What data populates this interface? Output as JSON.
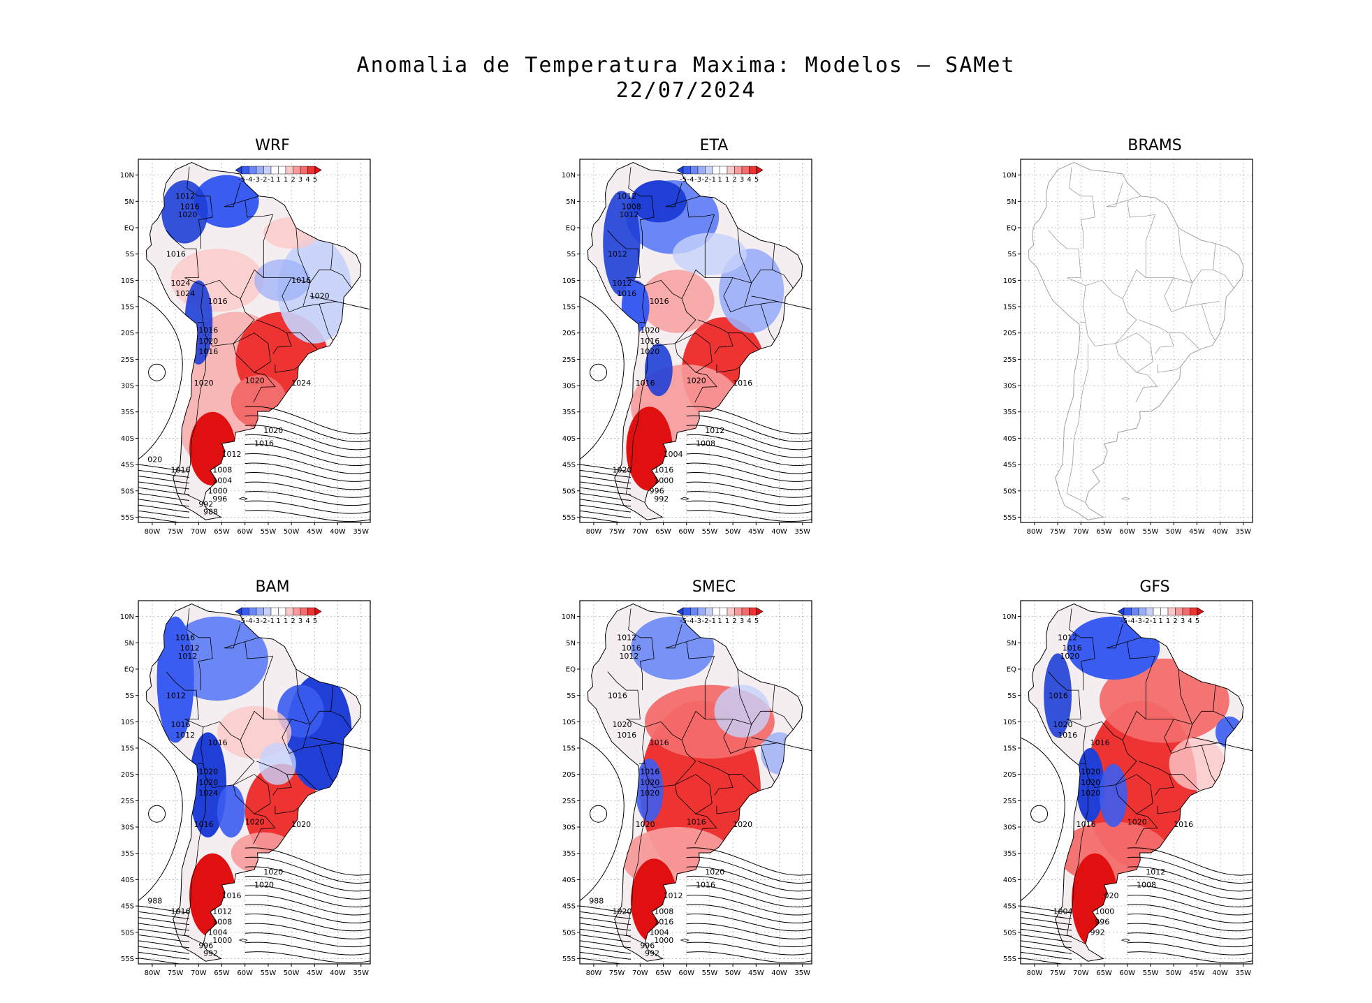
{
  "title": {
    "line1": "Anomalia de Temperatura Maxima: Modelos – SAMet",
    "line2": "22/07/2024"
  },
  "colorbar": {
    "ticks": [
      "-5",
      "-4",
      "-3",
      "-2",
      "-1",
      "1",
      "1",
      "2",
      "3",
      "4",
      "5"
    ],
    "colors": [
      "#1f3fd6",
      "#3a5cf0",
      "#6a87f5",
      "#9aaef8",
      "#c7d2fb",
      "#ffffff",
      "#ffffff",
      "#fbc8c8",
      "#f79a9a",
      "#f36c6c",
      "#ee3333",
      "#e01010"
    ]
  },
  "axes": {
    "lat_labels": [
      "10N",
      "5N",
      "EQ",
      "5S",
      "10S",
      "15S",
      "20S",
      "25S",
      "30S",
      "35S",
      "40S",
      "45S",
      "50S",
      "55S"
    ],
    "lon_labels": [
      "80W",
      "75W",
      "70W",
      "65W",
      "60W",
      "55W",
      "50W",
      "45W",
      "40W",
      "35W"
    ]
  },
  "panels": [
    {
      "id": "wrf",
      "title": "WRF",
      "has_data": true,
      "pattern": "wrf",
      "labels": [
        "1012",
        "1016",
        "1020",
        "1016",
        "1024",
        "1024",
        "1016",
        "1016",
        "1020",
        "1016",
        "1020",
        "1020",
        "1024",
        "1020",
        "1016",
        "1012",
        "1016",
        "1008",
        "1004",
        "1000",
        "996",
        "992",
        "988",
        "020",
        "1016",
        "1020"
      ]
    },
    {
      "id": "eta",
      "title": "ETA",
      "has_data": true,
      "pattern": "eta",
      "labels": [
        "1012",
        "1008",
        "1012",
        "1012",
        "1012",
        "1016",
        "1016",
        "1020",
        "1016",
        "1020",
        "1016",
        "1020",
        "1016",
        "1012",
        "1008",
        "1004",
        "1020",
        "1016",
        "1000",
        "996",
        "992"
      ]
    },
    {
      "id": "brams",
      "title": "BRAMS",
      "has_data": false,
      "pattern": "none",
      "labels": []
    },
    {
      "id": "bam",
      "title": "BAM",
      "has_data": true,
      "pattern": "bam",
      "labels": [
        "1016",
        "1012",
        "1012",
        "1012",
        "1016",
        "1012",
        "1016",
        "1020",
        "1020",
        "1024",
        "1016",
        "1020",
        "1020",
        "1020",
        "1020",
        "1016",
        "1016",
        "1012",
        "1008",
        "1004",
        "1000",
        "996",
        "992",
        "988"
      ]
    },
    {
      "id": "smec",
      "title": "SMEC",
      "has_data": true,
      "pattern": "smec",
      "labels": [
        "1012",
        "1016",
        "1012",
        "1016",
        "1020",
        "1016",
        "1016",
        "1016",
        "1020",
        "1020",
        "1020",
        "1016",
        "1020",
        "1020",
        "1016",
        "1012",
        "1020",
        "1008",
        "1016",
        "1004",
        "1000",
        "996",
        "992",
        "988"
      ]
    },
    {
      "id": "gfs",
      "title": "GFS",
      "has_data": true,
      "pattern": "gfs",
      "labels": [
        "1012",
        "1016",
        "1020",
        "1016",
        "1020",
        "1016",
        "1016",
        "1020",
        "1020",
        "1020",
        "1016",
        "1020",
        "1016",
        "1012",
        "1008",
        "020",
        "1004",
        "1000",
        "996",
        "992"
      ]
    }
  ]
}
